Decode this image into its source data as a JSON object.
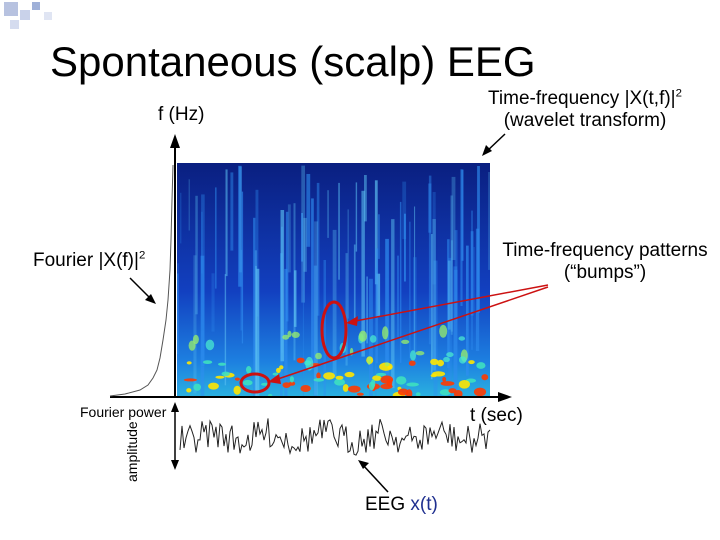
{
  "slide": {
    "title": "Spontaneous (scalp) EEG",
    "freq_axis_label": "f (Hz)",
    "tf_label_line1": "Time-frequency |X(t,f)|",
    "tf_label_sup": "2",
    "tf_label_line2": "(wavelet transform)",
    "fourier_label": "Fourier |X(f)|",
    "fourier_label_sup": "2",
    "patterns_label_line1": "Time-frequency patterns",
    "patterns_label_line2": "(“bumps”)",
    "fourier_power_label": "Fourier power",
    "time_axis_label": "t (sec)",
    "amplitude_label": "amplitude",
    "eeg_label_prefix": "EEG ",
    "eeg_label_signal": "x(t)"
  },
  "colors": {
    "spectrogram_base": "#0a2a9a",
    "bump_outline": "#cc1111",
    "eeg_signal_text": "#1f2f8f"
  }
}
